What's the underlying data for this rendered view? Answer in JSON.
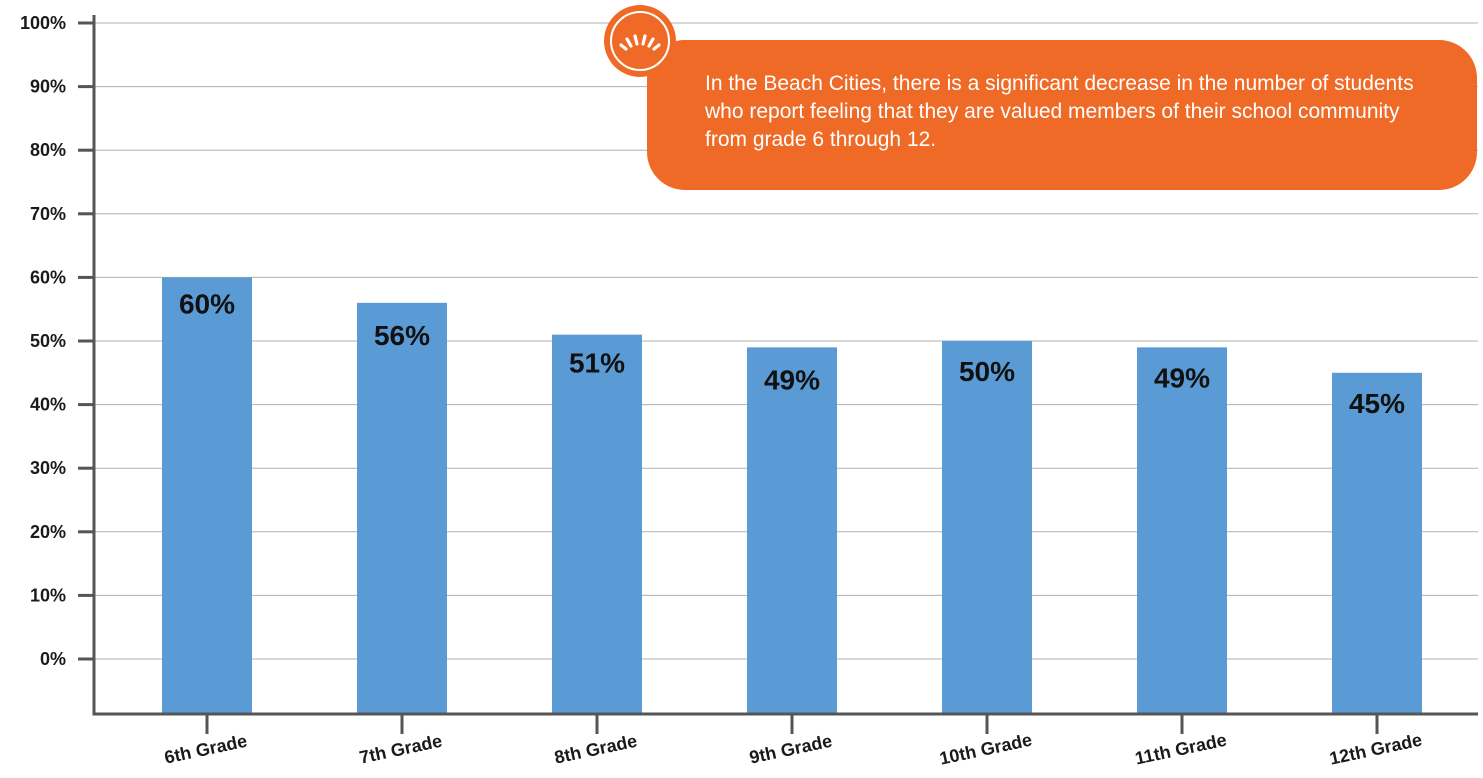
{
  "chart_data": {
    "type": "bar",
    "categories": [
      "6th Grade",
      "7th Grade",
      "8th Grade",
      "9th Grade",
      "10th Grade",
      "11th Grade",
      "12th Grade"
    ],
    "values": [
      60,
      56,
      51,
      49,
      50,
      49,
      45
    ],
    "value_labels": [
      "60%",
      "56%",
      "51%",
      "49%",
      "50%",
      "49%",
      "45%"
    ],
    "y_ticks": [
      "0%",
      "10%",
      "20%",
      "30%",
      "40%",
      "50%",
      "60%",
      "70%",
      "80%",
      "90%",
      "100%"
    ],
    "ylim": [
      0,
      100
    ],
    "title": "",
    "xlabel": "",
    "ylabel": "",
    "grid": true,
    "bar_color": "#5b9bd5",
    "axis_color": "#555555",
    "grid_color": "#b0b0b0"
  },
  "callout": {
    "text": "In the Beach Cities, there is a significant decrease in the number of students who report feeling that they are valued members of their school community from grade 6 through 12.",
    "color": "#ef6a26",
    "icon": "sun-logo-icon"
  }
}
